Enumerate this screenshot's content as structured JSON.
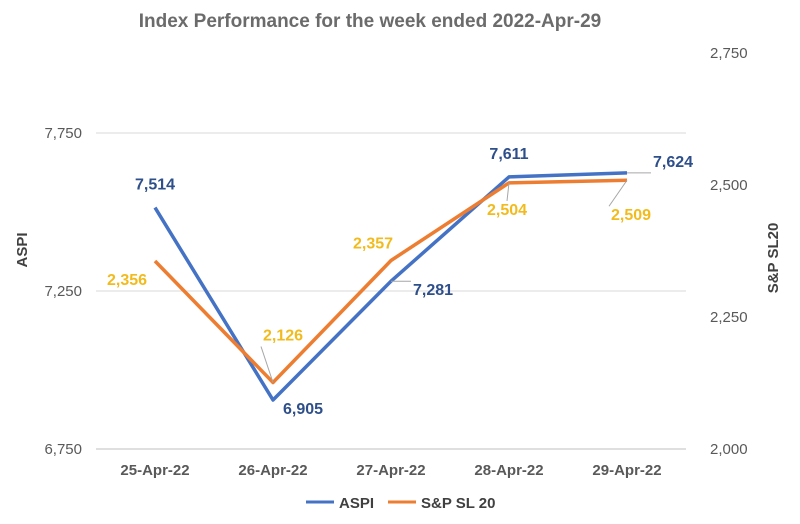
{
  "chart_data": {
    "type": "line",
    "title": "Index Performance for the week ended 2022-Apr-29",
    "categories": [
      "25-Apr-22",
      "26-Apr-22",
      "27-Apr-22",
      "28-Apr-22",
      "29-Apr-22"
    ],
    "y_left": {
      "label": "ASPI",
      "range": [
        6750,
        7750
      ],
      "ticks": [
        "6,750",
        "7,250",
        "7,750"
      ],
      "tick_values": [
        6750,
        7250,
        7750
      ]
    },
    "y_right": {
      "label": "S&P SL20",
      "range": [
        2000,
        2750
      ],
      "ticks": [
        "2,000",
        "2,250",
        "2,500",
        "2,750"
      ],
      "tick_values": [
        2000,
        2250,
        2500,
        2750
      ]
    },
    "series": [
      {
        "name": "ASPI",
        "axis": "left",
        "color": "#4472c4",
        "label_color": "#2e4f8a",
        "values": [
          7514,
          6905,
          7281,
          7611,
          7624
        ],
        "labels": [
          "7,514",
          "6,905",
          "7,281",
          "7,611",
          "7,624"
        ]
      },
      {
        "name": "S&P SL 20",
        "axis": "right",
        "color": "#ed7d31",
        "label_color": "#f2bb1d",
        "values": [
          2356,
          2126,
          2357,
          2504,
          2509
        ],
        "labels": [
          "2,356",
          "2,126",
          "2,357",
          "2,504",
          "2,509"
        ]
      }
    ],
    "grid": true,
    "legend": "bottom"
  }
}
